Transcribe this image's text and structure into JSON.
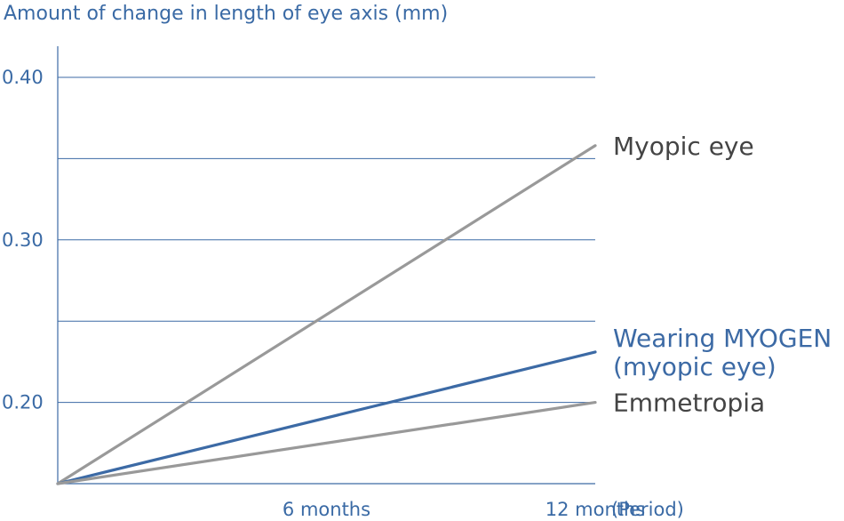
{
  "chart_data": {
    "type": "line",
    "ylabel": "Amount of change in length of eye axis (mm)",
    "xlabel": "(Period)",
    "ylim": [
      0.15,
      0.4
    ],
    "yticks": [
      {
        "value": 0.4,
        "label": "0.40"
      },
      {
        "value": 0.3,
        "label": "0.30"
      },
      {
        "value": 0.2,
        "label": "0.20"
      }
    ],
    "grid_values": [
      0.4,
      0.35,
      0.3,
      0.25,
      0.2
    ],
    "xlim": [
      0,
      12
    ],
    "xticks": [
      {
        "value": 6,
        "label": "6 months"
      },
      {
        "value": 12,
        "label": "12 months"
      }
    ],
    "grid": true,
    "series": [
      {
        "name": "Myopic eye",
        "x": [
          0,
          12
        ],
        "values": [
          0.15,
          0.358
        ],
        "color": "#999999",
        "label_color": "#444444",
        "label_lines": [
          "Myopic eye"
        ]
      },
      {
        "name": "Wearing MYOGEN (myopic eye)",
        "x": [
          0,
          12
        ],
        "values": [
          0.15,
          0.231
        ],
        "color": "#3c6aa5",
        "label_color": "#3c6aa5",
        "label_lines": [
          "Wearing MYOGEN",
          "(myopic eye)"
        ]
      },
      {
        "name": "Emmetropia",
        "x": [
          0,
          12
        ],
        "values": [
          0.15,
          0.2
        ],
        "color": "#999999",
        "label_color": "#444444",
        "label_lines": [
          "Emmetropia"
        ]
      }
    ]
  }
}
